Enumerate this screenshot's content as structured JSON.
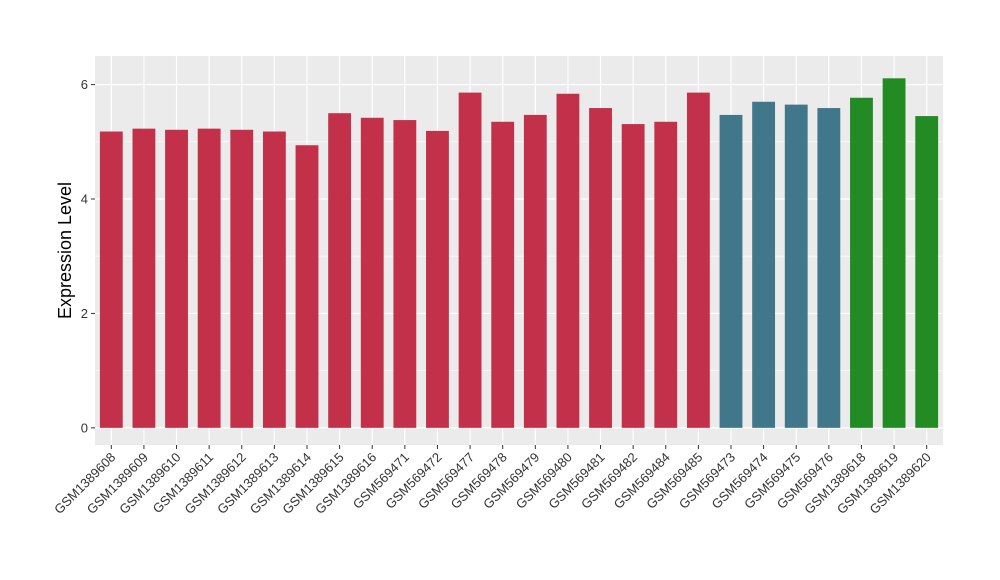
{
  "chart_data": {
    "type": "bar",
    "title": "",
    "xlabel": "",
    "ylabel": "Expression Level",
    "ylim": [
      -0.3,
      6.5
    ],
    "yticks": [
      0,
      2,
      4,
      6
    ],
    "grid": true,
    "legend": "none",
    "panel_background": "#EBEBEB",
    "gridline_color": "#FFFFFF",
    "categories": [
      "GSM1389608",
      "GSM1389609",
      "GSM1389610",
      "GSM1389611",
      "GSM1389612",
      "GSM1389613",
      "GSM1389614",
      "GSM1389615",
      "GSM1389616",
      "GSM569471",
      "GSM569472",
      "GSM569477",
      "GSM569478",
      "GSM569479",
      "GSM569480",
      "GSM569481",
      "GSM569482",
      "GSM569484",
      "GSM569485",
      "GSM569473",
      "GSM569474",
      "GSM569475",
      "GSM569476",
      "GSM1389618",
      "GSM1389619",
      "GSM1389620"
    ],
    "values": [
      5.18,
      5.23,
      5.21,
      5.23,
      5.21,
      5.18,
      4.94,
      5.5,
      5.42,
      5.38,
      5.19,
      5.86,
      5.35,
      5.47,
      5.84,
      5.59,
      5.31,
      5.35,
      5.86,
      5.47,
      5.7,
      5.65,
      5.59,
      5.77,
      6.11,
      5.45
    ],
    "colors": [
      "#C3304A",
      "#C3304A",
      "#C3304A",
      "#C3304A",
      "#C3304A",
      "#C3304A",
      "#C3304A",
      "#C3304A",
      "#C3304A",
      "#C3304A",
      "#C3304A",
      "#C3304A",
      "#C3304A",
      "#C3304A",
      "#C3304A",
      "#C3304A",
      "#C3304A",
      "#C3304A",
      "#C3304A",
      "#41778A",
      "#41778A",
      "#41778A",
      "#41778A",
      "#238B23",
      "#238B23",
      "#238B23"
    ]
  }
}
